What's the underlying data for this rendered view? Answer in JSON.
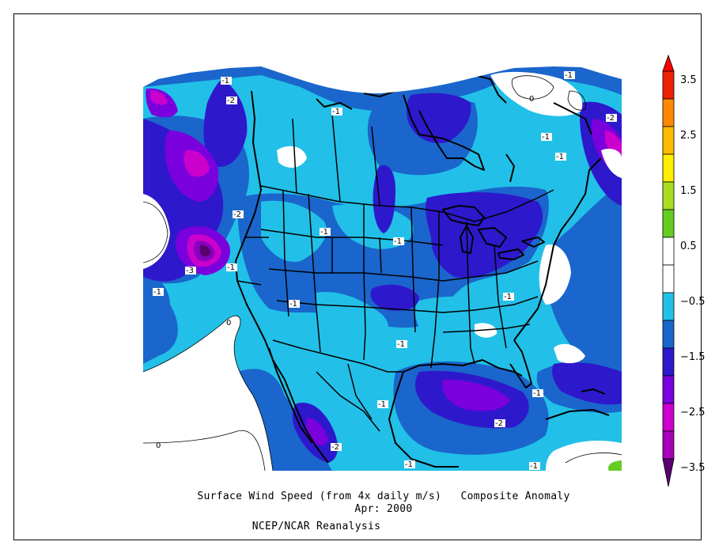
{
  "title_line1": "Surface Wind Speed (from 4x daily m/s)   Composite Anomaly",
  "title_line2": "Apr: 2000",
  "source": "NCEP/NCAR Reanalysis",
  "colorbar": {
    "levels": [
      -3.5,
      -3,
      -2.5,
      -2,
      -1.5,
      -1,
      -0.5,
      0,
      0.5,
      1,
      1.5,
      2,
      2.5,
      3,
      3.5
    ],
    "tick_labels": [
      "3.5",
      "2.5",
      "1.5",
      "0.5",
      "−0.5",
      "−1.5",
      "−2.5",
      "−3.5"
    ],
    "colors": [
      "#8800c0",
      "#a600b8",
      "#cc00cc",
      "#7a00dd",
      "#2e18cc",
      "#1a66cc",
      "#22c0e8",
      "#ffffff",
      "#ffffff",
      "#66cc22",
      "#aadd22",
      "#ffee00",
      "#ffbb00",
      "#ff8800",
      "#ee2200",
      "#ff0000"
    ]
  },
  "contour_labels": [
    "-1",
    "-2",
    "-1",
    "-1",
    "-1",
    "-2",
    "-1",
    "-1",
    "-2",
    "-1",
    "-1",
    "-3",
    "-1",
    "-1",
    "-1",
    "-1",
    "-1",
    "-1",
    "-1",
    "-1",
    "-1",
    "-2",
    "-2",
    "-1",
    "-1",
    "0",
    "0",
    "0"
  ]
}
